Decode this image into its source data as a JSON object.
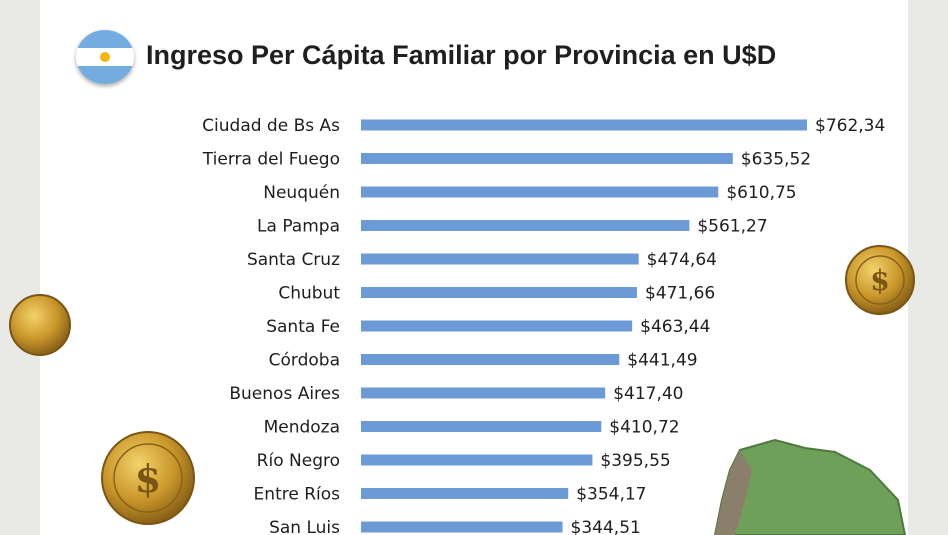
{
  "title": "Ingreso Per Cápita Familiar por Provincia en U$D",
  "chart_data": {
    "type": "bar",
    "orientation": "horizontal",
    "title": "Ingreso Per Cápita Familiar por Provincia en U$D",
    "categories": [
      "Ciudad de Bs As",
      "Tierra del Fuego",
      "Neuquén",
      "La Pampa",
      "Santa Cruz",
      "Chubut",
      "Santa Fe",
      "Córdoba",
      "Buenos Aires",
      "Mendoza",
      "Río Negro",
      "Entre Ríos",
      "San Luis"
    ],
    "values": [
      762.34,
      635.52,
      610.75,
      561.27,
      474.64,
      471.66,
      463.44,
      441.49,
      417.4,
      410.72,
      395.55,
      354.17,
      344.51
    ],
    "value_labels": [
      "$762,34",
      "$635,52",
      "$610,75",
      "$561,27",
      "$474,64",
      "$471,66",
      "$463,44",
      "$441,49",
      "$417,40",
      "$410,72",
      "$395,55",
      "$354,17",
      "$344,51"
    ],
    "xlim": [
      0,
      762.34
    ],
    "bar_color": "#6b9ad6",
    "grid": false,
    "legend": "none"
  },
  "decor": {
    "flag_icon": "argentina-flag-icon",
    "coin_icon": "dollar-coin-icon",
    "map_icon": "argentina-map-icon"
  }
}
